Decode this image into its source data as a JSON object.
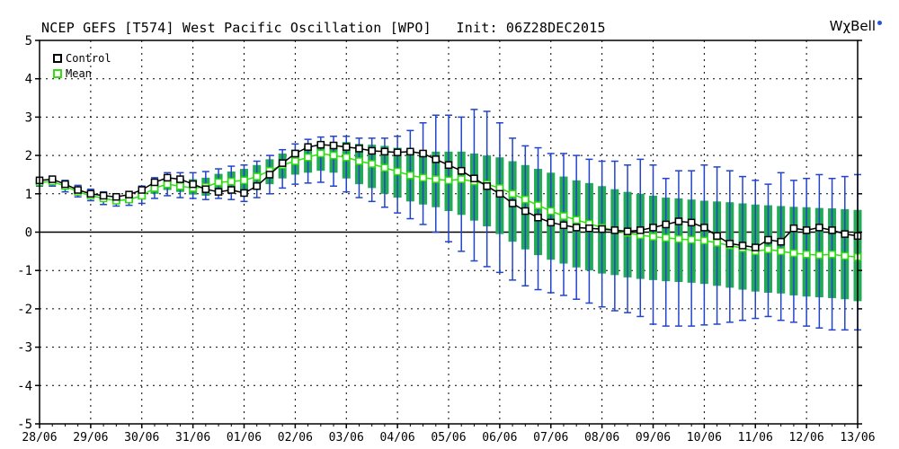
{
  "header": {
    "title": "NCEP GEFS [T574] West Pacific Oscillation [WPO]   Init: 06Z28DEC2015",
    "logo": "WχBell"
  },
  "colors": {
    "control": "#000000",
    "mean": "#33dd11",
    "spread_bar": "#22aa55",
    "whisker": "#2244cc",
    "grid": "#000000"
  },
  "legend": {
    "control_label": "Control",
    "mean_label": "Mean"
  },
  "chart_data": {
    "type": "line",
    "title": "NCEP GEFS [T574] West Pacific Oscillation [WPO]   Init: 06Z28DEC2015",
    "xlabel": "",
    "ylabel": "",
    "ylim": [
      -5,
      5
    ],
    "yticks": [
      5,
      4,
      3,
      2,
      1,
      0,
      -1,
      -2,
      -3,
      -4,
      -5
    ],
    "xticks": [
      "28/06",
      "29/06",
      "30/06",
      "31/06",
      "01/06",
      "02/06",
      "03/06",
      "04/06",
      "05/06",
      "06/06",
      "07/06",
      "08/06",
      "09/06",
      "10/06",
      "11/06",
      "12/06",
      "13/06"
    ],
    "step_hours": 6,
    "legend_position": "top-left",
    "grid": true,
    "series": [
      {
        "name": "Control",
        "values": [
          1.35,
          1.38,
          1.25,
          1.1,
          1.0,
          0.95,
          0.92,
          0.98,
          1.1,
          1.3,
          1.42,
          1.38,
          1.25,
          1.12,
          1.05,
          1.1,
          1.02,
          1.2,
          1.5,
          1.8,
          2.05,
          2.22,
          2.28,
          2.26,
          2.22,
          2.18,
          2.12,
          2.1,
          2.08,
          2.1,
          2.05,
          1.9,
          1.75,
          1.6,
          1.4,
          1.2,
          1.0,
          0.75,
          0.55,
          0.38,
          0.25,
          0.18,
          0.12,
          0.1,
          0.08,
          0.05,
          0.02,
          0.05,
          0.12,
          0.2,
          0.28,
          0.25,
          0.12,
          -0.1,
          -0.3,
          -0.35,
          -0.4,
          -0.2,
          -0.25,
          0.1,
          0.05,
          0.12,
          0.05,
          -0.05,
          -0.1
        ]
      },
      {
        "name": "Mean",
        "values": [
          1.3,
          1.32,
          1.2,
          1.05,
          0.95,
          0.88,
          0.82,
          0.85,
          0.95,
          1.15,
          1.25,
          1.2,
          1.15,
          1.18,
          1.3,
          1.32,
          1.35,
          1.45,
          1.6,
          1.75,
          1.85,
          1.95,
          2.05,
          2.0,
          1.95,
          1.85,
          1.78,
          1.68,
          1.58,
          1.48,
          1.42,
          1.38,
          1.35,
          1.38,
          1.32,
          1.25,
          1.15,
          1.0,
          0.85,
          0.7,
          0.55,
          0.42,
          0.32,
          0.22,
          0.12,
          0.05,
          -0.02,
          -0.08,
          -0.12,
          -0.15,
          -0.18,
          -0.2,
          -0.22,
          -0.28,
          -0.35,
          -0.42,
          -0.5,
          -0.45,
          -0.5,
          -0.55,
          -0.58,
          -0.6,
          -0.58,
          -0.62,
          -0.65
        ]
      }
    ],
    "spread_low": [
      1.25,
      1.25,
      1.12,
      1.0,
      0.9,
      0.82,
      0.75,
      0.76,
      0.85,
      1.0,
      1.1,
      1.05,
      0.98,
      0.95,
      1.0,
      1.02,
      1.0,
      1.1,
      1.25,
      1.4,
      1.5,
      1.55,
      1.6,
      1.55,
      1.4,
      1.25,
      1.15,
      1.0,
      0.9,
      0.8,
      0.72,
      0.65,
      0.55,
      0.45,
      0.3,
      0.15,
      -0.05,
      -0.25,
      -0.45,
      -0.6,
      -0.72,
      -0.82,
      -0.92,
      -1.0,
      -1.08,
      -1.12,
      -1.18,
      -1.22,
      -1.25,
      -1.28,
      -1.3,
      -1.32,
      -1.35,
      -1.4,
      -1.45,
      -1.5,
      -1.55,
      -1.58,
      -1.6,
      -1.65,
      -1.68,
      -1.7,
      -1.72,
      -1.75,
      -1.8
    ],
    "spread_high": [
      1.38,
      1.4,
      1.3,
      1.15,
      1.05,
      0.98,
      0.92,
      0.95,
      1.08,
      1.3,
      1.42,
      1.4,
      1.38,
      1.42,
      1.52,
      1.58,
      1.65,
      1.75,
      1.9,
      2.05,
      2.15,
      2.25,
      2.35,
      2.35,
      2.35,
      2.3,
      2.28,
      2.25,
      2.2,
      2.15,
      2.12,
      2.1,
      2.1,
      2.1,
      2.05,
      2.0,
      1.95,
      1.85,
      1.75,
      1.65,
      1.55,
      1.45,
      1.35,
      1.28,
      1.2,
      1.12,
      1.05,
      1.0,
      0.95,
      0.9,
      0.88,
      0.85,
      0.82,
      0.8,
      0.78,
      0.75,
      0.72,
      0.7,
      0.68,
      0.66,
      0.65,
      0.63,
      0.62,
      0.6,
      0.58
    ],
    "whisker_low": [
      1.2,
      1.2,
      1.05,
      0.92,
      0.82,
      0.72,
      0.68,
      0.7,
      0.75,
      0.88,
      0.95,
      0.9,
      0.88,
      0.85,
      0.88,
      0.85,
      0.8,
      0.9,
      1.0,
      1.15,
      1.25,
      1.28,
      1.3,
      1.2,
      1.05,
      0.9,
      0.8,
      0.65,
      0.5,
      0.35,
      0.2,
      0.0,
      -0.25,
      -0.5,
      -0.75,
      -0.9,
      -1.05,
      -1.25,
      -1.4,
      -1.5,
      -1.58,
      -1.65,
      -1.75,
      -1.85,
      -1.95,
      -2.05,
      -2.1,
      -2.2,
      -2.4,
      -2.45,
      -2.45,
      -2.45,
      -2.42,
      -2.4,
      -2.35,
      -2.3,
      -2.25,
      -2.2,
      -2.3,
      -2.35,
      -2.45,
      -2.5,
      -2.55,
      -2.55,
      -2.55
    ],
    "whisker_high": [
      1.42,
      1.45,
      1.35,
      1.22,
      1.12,
      1.05,
      1.0,
      1.05,
      1.2,
      1.42,
      1.55,
      1.55,
      1.55,
      1.58,
      1.65,
      1.72,
      1.75,
      1.85,
      2.0,
      2.15,
      2.3,
      2.42,
      2.48,
      2.5,
      2.5,
      2.45,
      2.45,
      2.45,
      2.5,
      2.65,
      2.85,
      3.05,
      3.05,
      3.0,
      3.2,
      3.15,
      2.85,
      2.45,
      2.25,
      2.2,
      2.05,
      2.05,
      2.0,
      1.9,
      1.85,
      1.85,
      1.75,
      1.9,
      1.75,
      1.4,
      1.6,
      1.6,
      1.75,
      1.7,
      1.6,
      1.45,
      1.35,
      1.25,
      1.55,
      1.35,
      1.4,
      1.5,
      1.4,
      1.45,
      1.5
    ]
  }
}
